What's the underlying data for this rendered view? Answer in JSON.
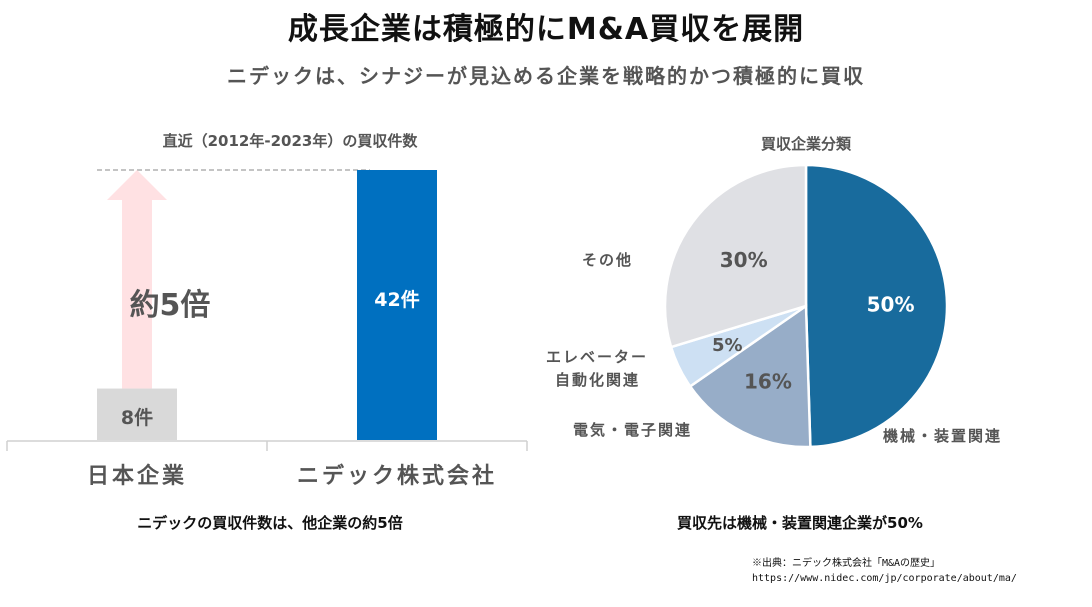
{
  "header": {
    "title": "成長企業は積極的にM&A買収を展開",
    "subtitle": "ニデックは、シナジーが見込める企業を戦略的かつ積極的に買収"
  },
  "colors": {
    "bar_japan": "#d9d9d9",
    "bar_nidec": "#0070c0",
    "arrow": "#ffe1e3",
    "pie_machinery": "#186b9d",
    "pie_electrical": "#97adc8",
    "pie_elevator": "#cde0f3",
    "pie_other": "#dfe0e4"
  },
  "annotation": {
    "multiplier_label": "約5倍"
  },
  "captions": {
    "bar": "ニデックの買収件数は、他企業の約5倍",
    "pie": "買収先は機械・装置関連企業が50%"
  },
  "source": {
    "line1": "※出典：ニデック株式会社「M&Aの歴史」",
    "line2": "https://www.nidec.com/jp/corporate/about/ma/"
  },
  "chart_data": [
    {
      "type": "bar",
      "title": "直近（2012年-2023年）の買収件数",
      "categories": [
        "日本企業",
        "ニデック株式会社"
      ],
      "values": [
        8,
        42
      ],
      "data_labels": [
        "8件",
        "42件"
      ],
      "unit": "件",
      "ylim": [
        0,
        42
      ],
      "xlabel": "",
      "ylabel": "",
      "grid": false,
      "reference_line": 42
    },
    {
      "type": "pie",
      "title": "買収企業分類",
      "start": "top",
      "direction": "clockwise",
      "slices": [
        {
          "label": "機械・装置関連",
          "value": 50,
          "data_label": "50%",
          "color_key": "pie_machinery"
        },
        {
          "label": "電気・電子関連",
          "value": 16,
          "data_label": "16%",
          "color_key": "pie_electrical"
        },
        {
          "label": "エレベーター自動化関連",
          "value": 5,
          "data_label": "5%",
          "color_key": "pie_elevator"
        },
        {
          "label": "その他",
          "value": 30,
          "data_label": "30%",
          "color_key": "pie_other"
        }
      ],
      "category_labels": {
        "machinery": "機械・装置関連",
        "electrical": "電気・電子関連",
        "elevator_line1": "エレベーター",
        "elevator_line2": "自動化関連",
        "other": "その他"
      }
    }
  ]
}
